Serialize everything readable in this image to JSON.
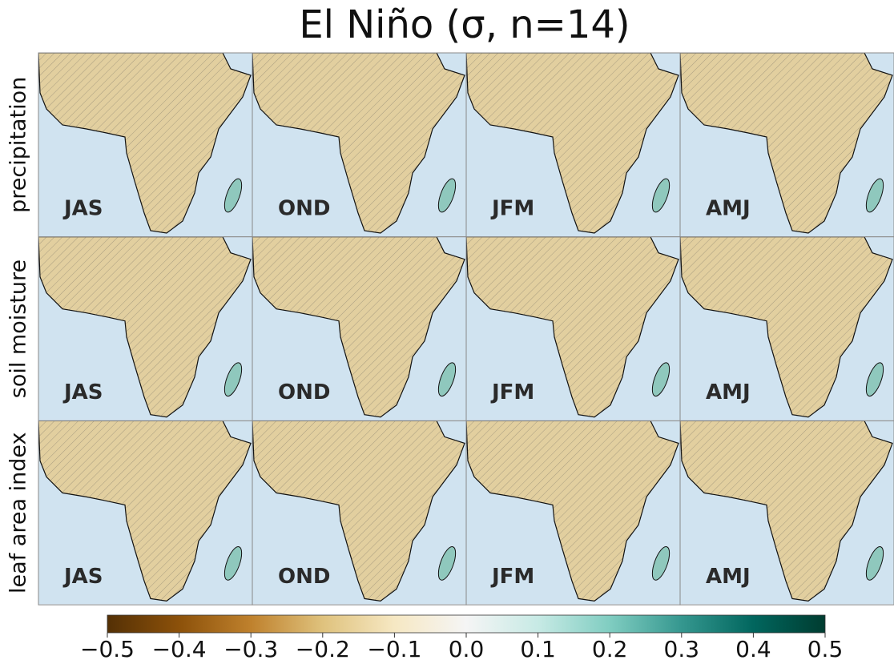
{
  "title": "El Niño (σ, n=14)",
  "rows": [
    {
      "label": "precipitation",
      "panels": [
        "JAS",
        "OND",
        "JFM",
        "AMJ"
      ]
    },
    {
      "label": "soil moisture",
      "panels": [
        "JAS",
        "OND",
        "JFM",
        "AMJ"
      ]
    },
    {
      "label": "leaf area index",
      "panels": [
        "JAS",
        "OND",
        "JFM",
        "AMJ"
      ]
    }
  ],
  "colorbar": {
    "lim": [
      -0.5,
      0.5
    ],
    "colors": [
      "#543005",
      "#8c510a",
      "#bf812d",
      "#dfc27d",
      "#f6e8c3",
      "#f5f5f5",
      "#c7eae5",
      "#80cdc1",
      "#35978f",
      "#01665e",
      "#003c30"
    ],
    "ticks": [
      {
        "value": -0.5,
        "label": "−0.5"
      },
      {
        "value": -0.4,
        "label": "−0.4"
      },
      {
        "value": -0.3,
        "label": "−0.3"
      },
      {
        "value": -0.2,
        "label": "−0.2"
      },
      {
        "value": -0.1,
        "label": "−0.1"
      },
      {
        "value": 0,
        "label": "0.0"
      },
      0.1,
      0.2,
      0.3,
      0.4,
      0.5
    ]
  }
}
